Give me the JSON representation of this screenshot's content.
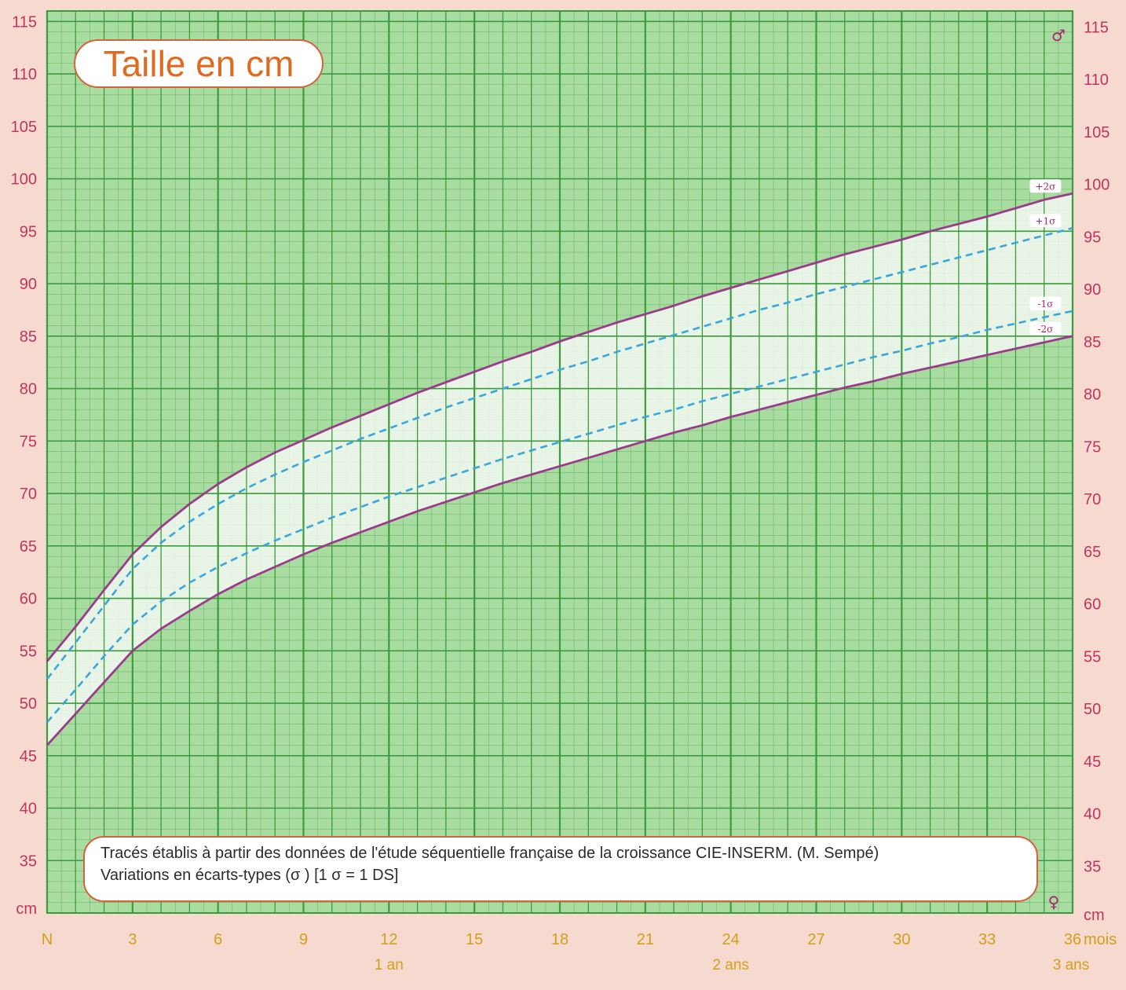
{
  "chart_data": {
    "type": "line",
    "title": "Taille en cm",
    "note_lines": [
      "Tracés établis à partir des données de l'étude séquentielle française de la croissance CIE-INSERM. (M. Sempé)",
      "Variations en écarts-types (σ ) [1  σ = 1 DS]"
    ],
    "y_unit": "cm",
    "x_unit": "mois",
    "ylim": [
      30,
      116
    ],
    "xlim": [
      0,
      36
    ],
    "y_ticks": [
      35,
      40,
      45,
      50,
      55,
      60,
      65,
      70,
      75,
      80,
      85,
      90,
      95,
      100,
      105,
      110,
      115
    ],
    "y_tick_labels": [
      "35",
      "40",
      "45",
      "50",
      "55",
      "60",
      "65",
      "70",
      "75",
      "80",
      "85",
      "90",
      "95",
      "100",
      "105",
      "110",
      "115"
    ],
    "y_axis_label": "cm",
    "x_ticks": [
      0,
      3,
      6,
      9,
      12,
      15,
      18,
      21,
      24,
      27,
      30,
      33,
      36
    ],
    "x_tick_labels": [
      "N",
      "3",
      "6",
      "9",
      "12",
      "15",
      "18",
      "21",
      "24",
      "27",
      "30",
      "33",
      "36"
    ],
    "x_unit_label": "mois",
    "x_sublabels": [
      {
        "x": 12,
        "label": "1 an"
      },
      {
        "x": 24,
        "label": "2 ans"
      },
      {
        "x": 36,
        "label": "3 ans"
      }
    ],
    "grid": true,
    "symbols": {
      "male": "♂",
      "female": "♀"
    },
    "series": [
      {
        "name": "+2σ",
        "style": "solid",
        "color": "#9b3b8c",
        "x": [
          0,
          1,
          2,
          3,
          4,
          5,
          6,
          7,
          8,
          9,
          10,
          11,
          12,
          13,
          14,
          15,
          16,
          17,
          18,
          19,
          20,
          21,
          22,
          23,
          24,
          25,
          26,
          27,
          28,
          29,
          30,
          31,
          32,
          33,
          34,
          35,
          36
        ],
        "values": [
          54.0,
          57.3,
          60.8,
          64.2,
          66.8,
          69.0,
          70.9,
          72.5,
          73.9,
          75.1,
          76.3,
          77.4,
          78.5,
          79.6,
          80.6,
          81.6,
          82.6,
          83.5,
          84.5,
          85.4,
          86.3,
          87.1,
          87.9,
          88.8,
          89.6,
          90.4,
          91.2,
          92.0,
          92.8,
          93.5,
          94.2,
          95.0,
          95.7,
          96.4,
          97.2,
          98.0,
          98.6
        ]
      },
      {
        "name": "+1σ",
        "style": "dashed",
        "color": "#3aa6dc",
        "x": [
          0,
          1,
          2,
          3,
          4,
          5,
          6,
          7,
          8,
          9,
          10,
          11,
          12,
          13,
          14,
          15,
          16,
          17,
          18,
          19,
          20,
          21,
          22,
          23,
          24,
          25,
          26,
          27,
          28,
          29,
          30,
          31,
          32,
          33,
          34,
          35,
          36
        ],
        "values": [
          52.3,
          55.8,
          59.3,
          62.8,
          65.3,
          67.3,
          69.0,
          70.5,
          71.8,
          73.0,
          74.1,
          75.2,
          76.2,
          77.2,
          78.2,
          79.1,
          80.0,
          80.9,
          81.8,
          82.6,
          83.5,
          84.3,
          85.1,
          85.9,
          86.7,
          87.5,
          88.2,
          89.0,
          89.7,
          90.4,
          91.1,
          91.8,
          92.5,
          93.2,
          93.9,
          94.6,
          95.3
        ]
      },
      {
        "name": "-1σ",
        "style": "dashed",
        "color": "#3aa6dc",
        "x": [
          0,
          1,
          2,
          3,
          4,
          5,
          6,
          7,
          8,
          9,
          10,
          11,
          12,
          13,
          14,
          15,
          16,
          17,
          18,
          19,
          20,
          21,
          22,
          23,
          24,
          25,
          26,
          27,
          28,
          29,
          30,
          31,
          32,
          33,
          34,
          35,
          36
        ],
        "values": [
          48.2,
          51.3,
          54.5,
          57.5,
          59.7,
          61.5,
          63.0,
          64.3,
          65.5,
          66.6,
          67.7,
          68.7,
          69.7,
          70.6,
          71.5,
          72.4,
          73.3,
          74.1,
          74.9,
          75.7,
          76.5,
          77.3,
          78.0,
          78.8,
          79.5,
          80.2,
          80.9,
          81.6,
          82.3,
          83.0,
          83.6,
          84.3,
          84.9,
          85.6,
          86.2,
          86.8,
          87.4
        ]
      },
      {
        "name": "-2σ",
        "style": "solid",
        "color": "#9b3b8c",
        "x": [
          0,
          1,
          2,
          3,
          4,
          5,
          6,
          7,
          8,
          9,
          10,
          11,
          12,
          13,
          14,
          15,
          16,
          17,
          18,
          19,
          20,
          21,
          22,
          23,
          24,
          25,
          26,
          27,
          28,
          29,
          30,
          31,
          32,
          33,
          34,
          35,
          36
        ],
        "values": [
          46.0,
          49.0,
          52.0,
          55.0,
          57.1,
          58.8,
          60.4,
          61.8,
          63.0,
          64.2,
          65.3,
          66.3,
          67.3,
          68.3,
          69.2,
          70.1,
          71.0,
          71.8,
          72.6,
          73.4,
          74.2,
          75.0,
          75.8,
          76.5,
          77.3,
          78.0,
          78.7,
          79.4,
          80.1,
          80.7,
          81.4,
          82.0,
          82.6,
          83.2,
          83.8,
          84.4,
          85.0
        ]
      }
    ],
    "colors": {
      "background": "#f6d9cf",
      "plot_fill": "#a9dca0",
      "band_fill": "#f2f8f2",
      "grid_line": "#3c9b3c",
      "outer_curve": "#9b3b8c",
      "inner_curve": "#3aa6dc",
      "y_tick_text": "#c0355f",
      "x_tick_text": "#d2a01a",
      "title_text": "#e06a20",
      "box_border": "#d8603a"
    }
  }
}
